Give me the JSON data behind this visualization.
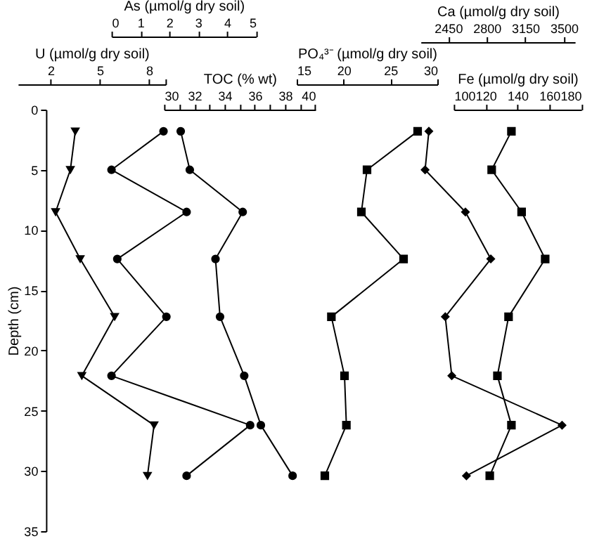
{
  "chart_data": [
    {
      "type": "line",
      "ylabel": "Depth (cm)",
      "ylim": [
        35,
        0
      ],
      "yticks": [
        0,
        5,
        10,
        15,
        20,
        25,
        30,
        35
      ],
      "xlabel": "U (µmol/g dry soil)",
      "xlim": [
        0,
        9
      ],
      "xticks": [
        2,
        5,
        8,
        {
          "value": 9,
          "label": null
        }
      ],
      "marker": "triangle",
      "color": "#000000",
      "x": [
        3.5,
        3.2,
        2.3,
        3.8,
        5.9,
        3.9,
        8.3,
        7.9
      ],
      "values": [
        1.8,
        5.0,
        8.5,
        12.4,
        17.2,
        22.1,
        26.2,
        30.4
      ]
    },
    {
      "type": "line",
      "ylim": [
        35,
        0
      ],
      "tick_labels": "x",
      "xlabel": "As (µmol/g dry soil)",
      "xlim": [
        0,
        5
      ],
      "xticks": [
        0,
        1,
        2,
        3,
        4,
        5
      ],
      "marker": "circle",
      "color": "#000000",
      "x": [
        1.8,
        0.0,
        2.6,
        0.2,
        1.9,
        0.0,
        4.8,
        2.6
      ],
      "values": [
        1.8,
        5.0,
        8.5,
        12.4,
        17.2,
        22.1,
        26.2,
        30.4
      ]
    },
    {
      "type": "line",
      "ylim": [
        35,
        0
      ],
      "tick_labels": "x",
      "xlabel": "TOC (% wt)",
      "xlim": [
        30,
        40
      ],
      "xticks": [
        30,
        {
          "value": 31,
          "label": null
        },
        32,
        {
          "value": 33,
          "label": null
        },
        34,
        {
          "value": 35,
          "label": null
        },
        36,
        {
          "value": 37,
          "label": null
        },
        38,
        {
          "value": 39,
          "label": null
        },
        40
      ],
      "marker": "circle",
      "color": "#000000",
      "x": [
        31.1,
        31.7,
        35.2,
        33.4,
        33.7,
        35.3,
        36.4,
        38.5
      ],
      "values": [
        1.8,
        5.0,
        8.5,
        12.4,
        17.2,
        22.1,
        26.2,
        30.4
      ]
    },
    {
      "type": "line",
      "ylim": [
        35,
        0
      ],
      "tick_labels": "x",
      "xlabel": "PO₄³⁻ (µmol/g dry soil)",
      "xlim": [
        15,
        30
      ],
      "xticks": [
        15,
        20,
        25,
        30
      ],
      "marker": "square",
      "color": "#000000",
      "x": [
        27.9,
        22.5,
        21.9,
        26.4,
        18.7,
        20.1,
        20.3,
        18.0
      ],
      "values": [
        1.8,
        5.0,
        8.5,
        12.4,
        17.2,
        22.1,
        26.2,
        30.4
      ]
    },
    {
      "type": "line",
      "ylim": [
        35,
        0
      ],
      "tick_labels": "x",
      "xlabel": "Ca (µmol/g dry soil)",
      "xlim": [
        2200,
        3600
      ],
      "xticks": [
        2450,
        2800,
        3150,
        3500
      ],
      "marker": "diamond",
      "color": "#000000",
      "x": [
        2275,
        2241,
        2607,
        2837,
        2424,
        2483,
        3484,
        2616
      ],
      "values": [
        1.8,
        5.0,
        8.5,
        12.4,
        17.2,
        22.1,
        26.2,
        30.4
      ]
    },
    {
      "type": "line",
      "ylim": [
        35,
        0
      ],
      "tick_labels": "x",
      "xlabel": "Fe (µmol/g dry soil)",
      "xlim": [
        100,
        180
      ],
      "xticks": [
        100,
        120,
        140,
        160,
        180
      ],
      "marker": "square",
      "color": "#000000",
      "x": [
        136.2,
        123.8,
        142.6,
        157.4,
        134.4,
        127.4,
        136.2,
        122.6
      ],
      "values": [
        1.8,
        5.0,
        8.5,
        12.4,
        17.2,
        22.1,
        26.2,
        30.4
      ]
    }
  ]
}
